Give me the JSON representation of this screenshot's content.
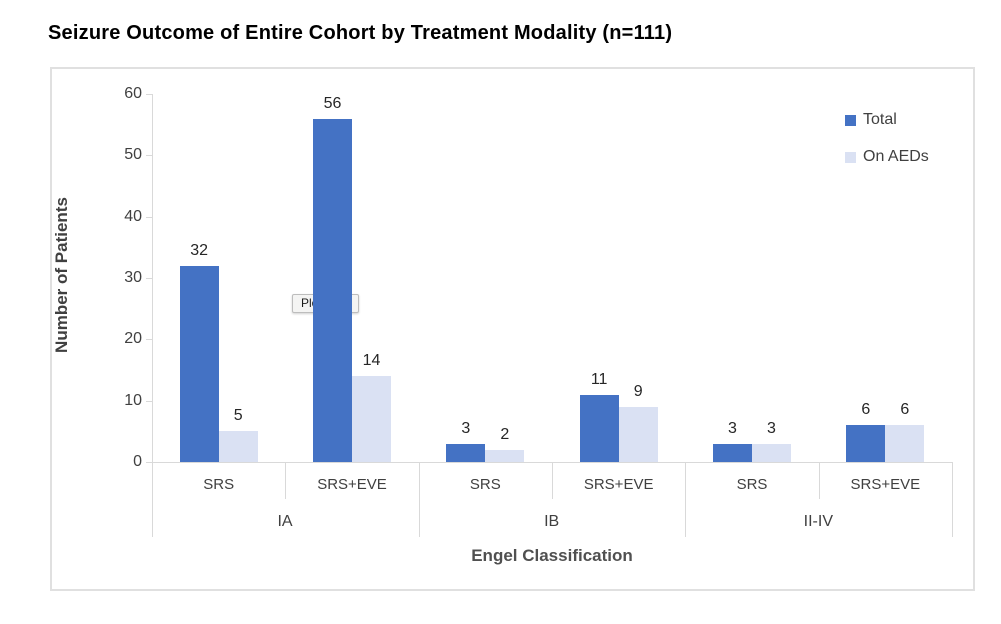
{
  "chart_data": {
    "type": "bar",
    "title": "Seizure Outcome of Entire Cohort by Treatment Modality (n=111)",
    "xlabel": "Engel Classification",
    "ylabel": "Number of Patients",
    "ylim": [
      0,
      60
    ],
    "yticks": [
      0,
      10,
      20,
      30,
      40,
      50,
      60
    ],
    "grid": false,
    "legend_position": "top-right",
    "categories": [
      "IA",
      "IB",
      "II-IV"
    ],
    "subcategories": [
      "SRS",
      "SRS+EVE"
    ],
    "series": [
      {
        "name": "Total",
        "color": "#4472C4",
        "values": [
          32,
          56,
          3,
          11,
          3,
          6
        ]
      },
      {
        "name": "On AEDs",
        "color": "#DAE1F3",
        "values": [
          5,
          14,
          2,
          9,
          3,
          6
        ]
      }
    ]
  },
  "overlay": {
    "tooltip": "Plot Area"
  }
}
